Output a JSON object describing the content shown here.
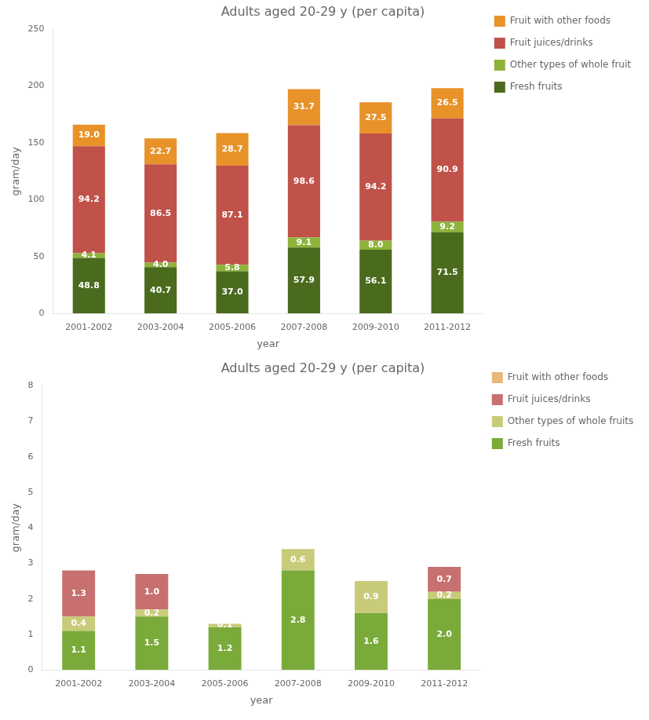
{
  "chart_data": [
    {
      "type": "bar",
      "stacked": true,
      "title": "Adults aged 20-29 y (per capita)",
      "xlabel": "year",
      "ylabel": "gram/day",
      "categories": [
        "2001-2002",
        "2003-2004",
        "2005-2006",
        "2007-2008",
        "2009-2010",
        "2011-2012"
      ],
      "series": [
        {
          "name": "Fresh fruits",
          "color": "#4a6b1e",
          "values": [
            48.8,
            40.7,
            37.0,
            57.9,
            56.1,
            71.5
          ],
          "value_labels": [
            "48.8",
            "40.7",
            "37.0",
            "57.9",
            "56.1",
            "71.5"
          ]
        },
        {
          "name": "Other types of whole fruit",
          "color": "#8db33a",
          "values": [
            4.1,
            4.0,
            5.8,
            9.1,
            8.0,
            9.2
          ],
          "value_labels": [
            "4.1",
            "4.0",
            "5.8",
            "9.1",
            "8.0",
            "9.2"
          ]
        },
        {
          "name": "Fruit juices/drinks",
          "color": "#c0524a",
          "values": [
            94.2,
            86.5,
            87.1,
            98.6,
            94.2,
            90.9
          ],
          "value_labels": [
            "94.2",
            "86.5",
            "87.1",
            "98.6",
            "94.2",
            "90.9"
          ]
        },
        {
          "name": "Fruit with other foods",
          "color": "#e8922a",
          "values": [
            19.0,
            22.7,
            28.7,
            31.7,
            27.5,
            26.5
          ],
          "value_labels": [
            "19.0",
            "22.7",
            "28.7",
            "31.7",
            "27.5",
            "26.5"
          ]
        }
      ],
      "ylim": [
        0,
        250
      ],
      "yticks": [
        0,
        50,
        100,
        150,
        200,
        250
      ],
      "grid": false,
      "legend": "right",
      "data_labels": true
    },
    {
      "type": "bar",
      "stacked": true,
      "title": "Adults aged 20-29 y (per capita)",
      "xlabel": "year",
      "ylabel": "gram/day",
      "categories": [
        "2001-2002",
        "2003-2004",
        "2005-2006",
        "2007-2008",
        "2009-2010",
        "2011-2012"
      ],
      "series": [
        {
          "name": "Fresh fruits",
          "color": "#7aaa3a",
          "values": [
            1.1,
            1.5,
            1.2,
            2.8,
            1.6,
            2.0
          ],
          "value_labels": [
            "1.1",
            "1.5",
            "1.2",
            "2.8",
            "1.6",
            "2.0"
          ]
        },
        {
          "name": "Other types of whole fruits",
          "color": "#c8cc7a",
          "values": [
            0.4,
            0.2,
            0.1,
            0.6,
            0.9,
            0.2
          ],
          "value_labels": [
            "0.4",
            "0.2",
            "0.1",
            "0.6",
            "0.9",
            "0.2"
          ]
        },
        {
          "name": "Fruit juices/drinks",
          "color": "#c87070",
          "values": [
            1.3,
            1.0,
            0.0,
            0.0,
            0.0,
            0.7
          ],
          "value_labels": [
            "1.3",
            "1.0",
            null,
            null,
            null,
            "0.7"
          ]
        },
        {
          "name": "Fruit with other foods",
          "color": "#e8b87a",
          "values": [
            0.0,
            0.0,
            0.0,
            0.0,
            0.0,
            0.0
          ],
          "value_labels": [
            null,
            null,
            null,
            null,
            null,
            null
          ]
        }
      ],
      "ylim": [
        0,
        8
      ],
      "yticks": [
        0,
        1,
        2,
        3,
        4,
        5,
        6,
        7,
        8
      ],
      "grid": false,
      "legend": "right",
      "data_labels": true
    }
  ]
}
